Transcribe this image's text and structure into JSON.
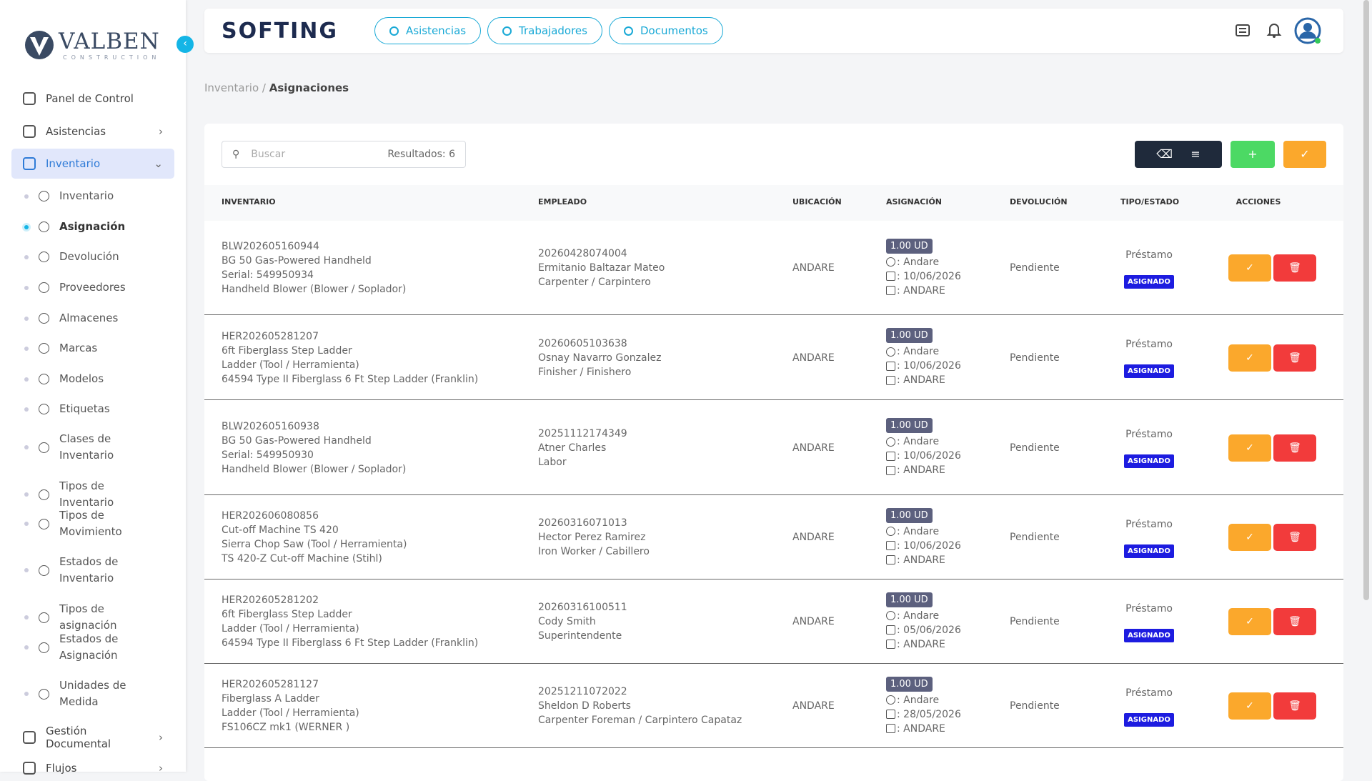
{
  "sidebar": {
    "logo": "VALBEN",
    "logo_sub": "CONSTRUCTION",
    "top": [
      "Panel de Control",
      "Asistencias",
      "Inventario"
    ],
    "sub": [
      "Inventario",
      "Asignación",
      "Devolución",
      "Proveedores",
      "Almacenes",
      "Marcas",
      "Modelos",
      "Etiquetas",
      "Clases de Inventario",
      "Tipos de Inventario",
      "Tipos de Movimiento",
      "Estados de Inventario",
      "Tipos de asignación",
      "Estados de Asignación",
      "Unidades de Medida"
    ],
    "bottom": [
      "Gestión Documental",
      "Flujos"
    ]
  },
  "header": {
    "brand": "SOFTING",
    "nav": [
      "Asistencias",
      "Trabajadores",
      "Documentos"
    ]
  },
  "breadcrumb": {
    "parent": "Inventario",
    "separator": "/",
    "current": "Asignaciones"
  },
  "search": {
    "placeholder": "Buscar",
    "results": "Resultados: 6"
  },
  "table": {
    "headers": [
      "INVENTARIO",
      "EMPLEADO",
      "UBICACIÓN",
      "ASIGNACIÓN",
      "DEVOLUCIÓN",
      "TIPO/ESTADO",
      "ACCIONES"
    ],
    "rows": [
      {
        "inventario": [
          "BLW202605160944",
          "BG 50 Gas-Powered Handheld",
          "Serial: 549950934",
          "Handheld Blower (Blower / Soplador)"
        ],
        "empleado": [
          "20260428074004",
          "Ermitanio Baltazar Mateo",
          "Carpenter / Carpintero"
        ],
        "ubicacion": "ANDARE",
        "cantidad": "1.00 UD",
        "responsable": ": Andare",
        "fecha": ": 10/06/2026",
        "destino": ": ANDARE",
        "devolucion": "Pendiente",
        "tipo": "Préstamo",
        "estado": "ASIGNADO"
      },
      {
        "inventario": [
          "HER202605281207",
          "6ft Fiberglass Step Ladder",
          "Ladder (Tool / Herramienta)",
          "64594 Type II Fiberglass 6 Ft Step Ladder (Franklin)"
        ],
        "empleado": [
          "20260605103638",
          "Osnay Navarro Gonzalez",
          "Finisher / Finishero"
        ],
        "ubicacion": "ANDARE",
        "cantidad": "1.00 UD",
        "responsable": ": Andare",
        "fecha": ": 10/06/2026",
        "destino": ": ANDARE",
        "devolucion": "Pendiente",
        "tipo": "Préstamo",
        "estado": "ASIGNADO"
      },
      {
        "inventario": [
          "BLW202605160938",
          "BG 50 Gas-Powered Handheld",
          "Serial: 549950930",
          "Handheld Blower (Blower / Soplador)"
        ],
        "empleado": [
          "20251112174349",
          "Atner Charles",
          "Labor"
        ],
        "ubicacion": "ANDARE",
        "cantidad": "1.00 UD",
        "responsable": ": Andare",
        "fecha": ": 10/06/2026",
        "destino": ": ANDARE",
        "devolucion": "Pendiente",
        "tipo": "Préstamo",
        "estado": "ASIGNADO"
      },
      {
        "inventario": [
          "HER202606080856",
          "Cut-off Machine TS 420",
          "Sierra Chop Saw (Tool / Herramienta)",
          "TS 420-Z Cut-off Machine (Stihl)"
        ],
        "empleado": [
          "20260316071013",
          "Hector Perez Ramirez",
          "Iron Worker / Cabillero"
        ],
        "ubicacion": "ANDARE",
        "cantidad": "1.00 UD",
        "responsable": ": Andare",
        "fecha": ": 10/06/2026",
        "destino": ": ANDARE",
        "devolucion": "Pendiente",
        "tipo": "Préstamo",
        "estado": "ASIGNADO"
      },
      {
        "inventario": [
          "HER202605281202",
          "6ft Fiberglass Step Ladder",
          "Ladder (Tool / Herramienta)",
          "64594 Type II Fiberglass 6 Ft Step Ladder (Franklin)"
        ],
        "empleado": [
          "20260316100511",
          "Cody Smith",
          "Superintendente"
        ],
        "ubicacion": "ANDARE",
        "cantidad": "1.00 UD",
        "responsable": ": Andare",
        "fecha": ": 05/06/2026",
        "destino": ": ANDARE",
        "devolucion": "Pendiente",
        "tipo": "Préstamo",
        "estado": "ASIGNADO"
      },
      {
        "inventario": [
          "HER202605281127",
          "Fiberglass A Ladder",
          "Ladder (Tool / Herramienta)",
          "FS106CZ mk1 (WERNER )"
        ],
        "empleado": [
          "20251211072022",
          "Sheldon D Roberts",
          "Carpenter Foreman / Carpintero Capataz"
        ],
        "ubicacion": "ANDARE",
        "cantidad": "1.00 UD",
        "responsable": ": Andare",
        "fecha": ": 28/05/2026",
        "destino": ": ANDARE",
        "devolucion": "Pendiente",
        "tipo": "Préstamo",
        "estado": "ASIGNADO"
      }
    ]
  }
}
